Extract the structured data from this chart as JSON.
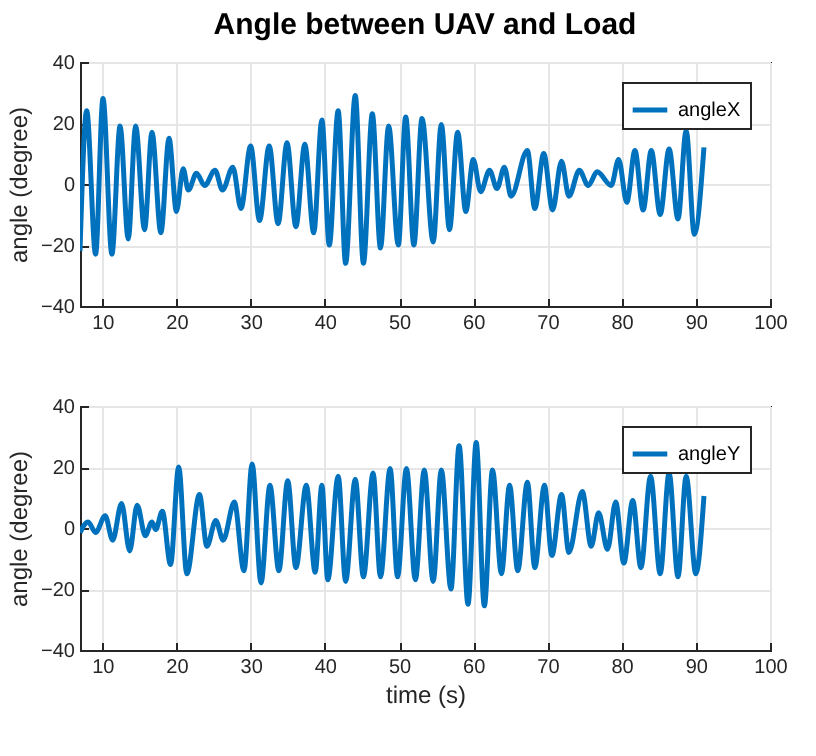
{
  "chart_data": [
    {
      "type": "line",
      "title": "Angle between UAV and Load",
      "ylabel": "angle (degree)",
      "xlim": [
        7,
        100
      ],
      "xticks": [
        10,
        20,
        30,
        40,
        50,
        60,
        70,
        80,
        90,
        100
      ],
      "ylim": [
        -40,
        40
      ],
      "yticks": [
        -40,
        -20,
        0,
        20,
        40
      ],
      "grid": true,
      "legend": "top right",
      "x": [
        7,
        7.9,
        9.1,
        10.1,
        11.3,
        12.4,
        13.5,
        14.5,
        15.7,
        16.7,
        17.9,
        19,
        20,
        20.9,
        21.6,
        22.7,
        23.8,
        25.2,
        26.2,
        27.6,
        28.7,
        30,
        31.2,
        32.5,
        33.7,
        34.9,
        36.1,
        37.3,
        38.5,
        39.6,
        40.6,
        41.8,
        42.8,
        44.1,
        45.2,
        46.4,
        47.5,
        48.6,
        49.9,
        50.9,
        52,
        53.1,
        54.6,
        55.7,
        56.8,
        57.9,
        59,
        60,
        61,
        62.2,
        63.2,
        64.2,
        65.1,
        67.3,
        68.3,
        69.5,
        70.7,
        71.9,
        72.9,
        74.3,
        75.5,
        76.7,
        78.6,
        79.6,
        80.7,
        81.8,
        82.9,
        84,
        85.2,
        86.4,
        87.6,
        88.7,
        89.8,
        91.1
      ],
      "series": [
        {
          "name": "angleX",
          "color": "#0072bd",
          "values": [
            -22,
            24,
            -23,
            28,
            -23,
            19,
            -18,
            19,
            -15,
            17,
            -16,
            15,
            -9,
            5,
            -2,
            3.5,
            -0.5,
            4.5,
            -2,
            5.5,
            -8,
            12.5,
            -12,
            12.5,
            -13,
            13.5,
            -14,
            13,
            -16,
            21,
            -20,
            24,
            -26,
            29,
            -26,
            23,
            -21,
            19,
            -20,
            22,
            -20,
            21.5,
            -19,
            19.5,
            -15,
            17,
            -9,
            8,
            -2.5,
            4.5,
            -1.5,
            5.5,
            -4,
            11,
            -8,
            10,
            -8.5,
            7.5,
            -4,
            4.5,
            -0.5,
            4,
            -0.5,
            8,
            -6,
            11,
            -8.5,
            11,
            -10,
            11.5,
            -11.5,
            17.5,
            -16.5,
            12
          ]
        }
      ]
    },
    {
      "type": "line",
      "xlabel": "time (s)",
      "ylabel": "angle (degree)",
      "xlim": [
        7,
        100
      ],
      "xticks": [
        10,
        20,
        30,
        40,
        50,
        60,
        70,
        80,
        90,
        100
      ],
      "ylim": [
        -40,
        40
      ],
      "yticks": [
        -40,
        -20,
        0,
        20,
        40
      ],
      "grid": true,
      "legend": "top right",
      "x": [
        7,
        8.1,
        9.1,
        10.4,
        11.4,
        12.6,
        13.7,
        14.7,
        15.8,
        16.7,
        17.2,
        18.1,
        19.2,
        20.3,
        21.4,
        23.1,
        24.1,
        25.3,
        26.3,
        27.8,
        29.1,
        30.2,
        31.4,
        32.6,
        33.8,
        35,
        36.1,
        37.5,
        38.7,
        39.6,
        40.4,
        41.8,
        42.8,
        44.1,
        45.2,
        46.5,
        47.5,
        48.8,
        49.8,
        51,
        52.2,
        53.4,
        54.6,
        55.7,
        57,
        58.1,
        59.3,
        60.4,
        61.5,
        62.6,
        63.8,
        64.9,
        66,
        67.3,
        68.3,
        69.6,
        70.6,
        71.9,
        72.9,
        74.7,
        75.9,
        76.9,
        78.1,
        79.2,
        80.3,
        81.5,
        82.6,
        83.9,
        85.2,
        86.4,
        87.6,
        88.7,
        90,
        91.1
      ],
      "series": [
        {
          "name": "angleY",
          "color": "#0072bd",
          "values": [
            -1.5,
            2,
            -1.5,
            4,
            -4,
            8,
            -7.5,
            7.5,
            -2.5,
            2,
            -0.5,
            5.5,
            -12,
            20,
            -15,
            11,
            -6,
            2.5,
            -4,
            8.5,
            -14,
            21,
            -18,
            14,
            -14,
            15.5,
            -13,
            14,
            -14.5,
            14,
            -17,
            17,
            -17.5,
            16,
            -16,
            18,
            -16,
            19.5,
            -16,
            19.5,
            -17,
            19,
            -17.5,
            19,
            -20,
            27,
            -25,
            28,
            -25.5,
            19,
            -15,
            14,
            -14,
            15,
            -13,
            14,
            -9,
            11,
            -8,
            12,
            -6,
            5,
            -7,
            8.5,
            -11.5,
            9,
            -13,
            17,
            -15,
            18,
            -16,
            17,
            -15,
            10.5
          ]
        }
      ]
    }
  ]
}
